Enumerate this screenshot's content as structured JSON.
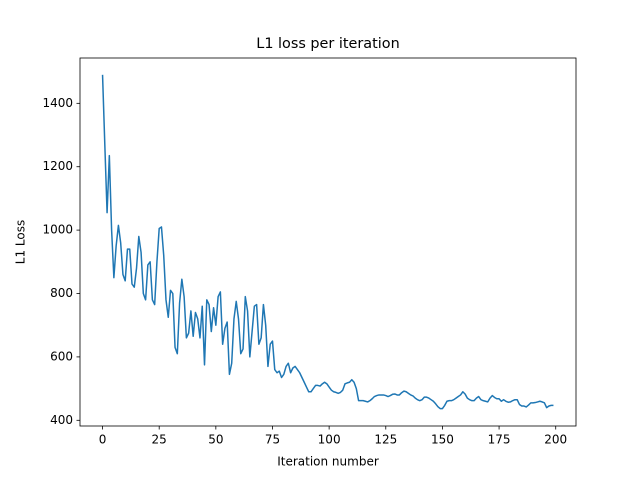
{
  "chart_data": {
    "type": "line",
    "title": "L1 loss per iteration",
    "x_label": "Iteration number",
    "y_label": "L1 Loss",
    "color": "#1f77b4",
    "x": [
      0,
      1,
      2,
      3,
      4,
      5,
      6,
      7,
      8,
      9,
      10,
      11,
      12,
      13,
      14,
      15,
      16,
      17,
      18,
      19,
      20,
      21,
      22,
      23,
      24,
      25,
      26,
      27,
      28,
      29,
      30,
      31,
      32,
      33,
      34,
      35,
      36,
      37,
      38,
      39,
      40,
      41,
      42,
      43,
      44,
      45,
      46,
      47,
      48,
      49,
      50,
      51,
      52,
      53,
      54,
      55,
      56,
      57,
      58,
      59,
      60,
      61,
      62,
      63,
      64,
      65,
      66,
      67,
      68,
      69,
      70,
      71,
      72,
      73,
      74,
      75,
      76,
      77,
      78,
      79,
      80,
      81,
      82,
      83,
      84,
      85,
      86,
      87,
      88,
      89,
      90,
      91,
      92,
      93,
      94,
      95,
      96,
      97,
      98,
      99,
      100,
      101,
      102,
      103,
      104,
      105,
      106,
      107,
      108,
      109,
      110,
      111,
      112,
      113,
      114,
      115,
      116,
      117,
      118,
      119,
      120,
      121,
      122,
      123,
      124,
      125,
      126,
      127,
      128,
      129,
      130,
      131,
      132,
      133,
      134,
      135,
      136,
      137,
      138,
      139,
      140,
      141,
      142,
      143,
      144,
      145,
      146,
      147,
      148,
      149,
      150,
      151,
      152,
      153,
      154,
      155,
      156,
      157,
      158,
      159,
      160,
      161,
      162,
      163,
      164,
      165,
      166,
      167,
      168,
      169,
      170,
      171,
      172,
      173,
      174,
      175,
      176,
      177,
      178,
      179,
      180,
      181,
      182,
      183,
      184,
      185,
      186,
      187,
      188,
      189,
      190,
      191,
      192,
      193,
      194,
      195,
      196,
      197,
      198,
      199
    ],
    "values": [
      1490,
      1270,
      1055,
      1235,
      1000,
      850,
      950,
      1015,
      960,
      860,
      840,
      940,
      940,
      830,
      820,
      880,
      980,
      930,
      800,
      780,
      890,
      900,
      780,
      765,
      900,
      1005,
      1010,
      920,
      780,
      725,
      810,
      800,
      630,
      610,
      770,
      845,
      790,
      660,
      675,
      745,
      665,
      740,
      720,
      660,
      760,
      575,
      780,
      765,
      680,
      755,
      700,
      790,
      805,
      640,
      690,
      710,
      545,
      580,
      720,
      775,
      720,
      610,
      625,
      790,
      745,
      600,
      680,
      760,
      765,
      640,
      660,
      765,
      700,
      570,
      640,
      650,
      560,
      550,
      555,
      535,
      545,
      570,
      580,
      550,
      565,
      570,
      560,
      550,
      535,
      520,
      505,
      490,
      490,
      500,
      510,
      510,
      508,
      515,
      520,
      515,
      505,
      495,
      490,
      488,
      485,
      488,
      495,
      515,
      518,
      520,
      528,
      520,
      500,
      462,
      462,
      462,
      460,
      458,
      462,
      468,
      475,
      478,
      480,
      480,
      480,
      478,
      475,
      478,
      482,
      483,
      480,
      480,
      487,
      492,
      490,
      485,
      480,
      477,
      470,
      465,
      462,
      465,
      473,
      473,
      470,
      465,
      460,
      452,
      443,
      437,
      437,
      447,
      460,
      462,
      462,
      465,
      470,
      475,
      480,
      490,
      483,
      470,
      465,
      462,
      462,
      470,
      475,
      465,
      462,
      460,
      458,
      470,
      478,
      472,
      468,
      468,
      460,
      465,
      460,
      457,
      458,
      462,
      465,
      465,
      450,
      445,
      445,
      442,
      448,
      455,
      455,
      456,
      458,
      460,
      458,
      455,
      440,
      445,
      447,
      447
    ],
    "xlim": [
      -9.95,
      208.95
    ],
    "ylim": [
      382,
      1543
    ],
    "xticks": [
      0,
      25,
      50,
      75,
      100,
      125,
      150,
      175,
      200
    ],
    "yticks": [
      400,
      600,
      800,
      1000,
      1200,
      1400
    ]
  }
}
